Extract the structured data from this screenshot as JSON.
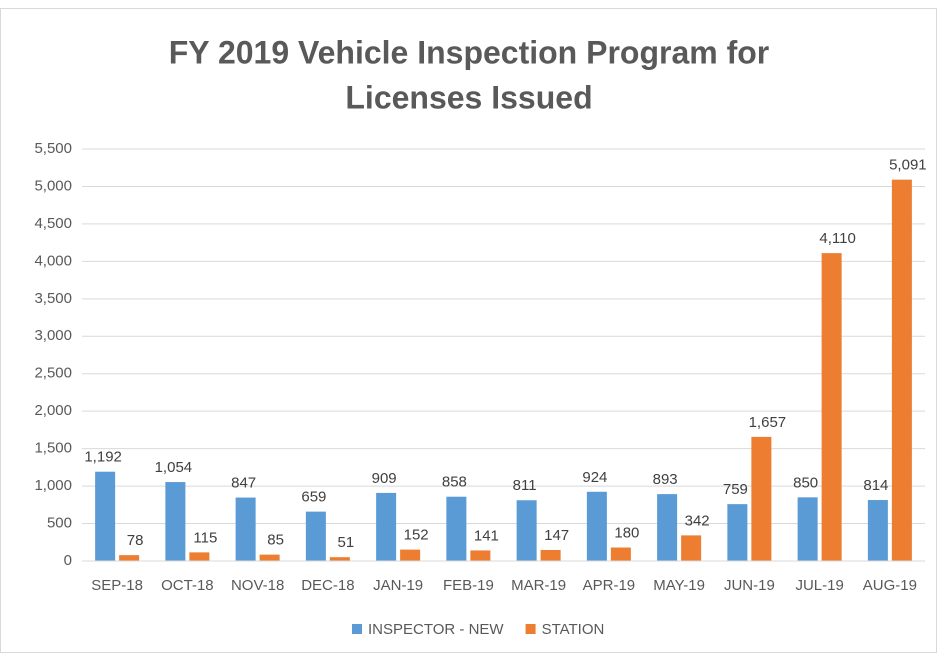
{
  "chart_data": {
    "type": "bar",
    "title": [
      "FY 2019 Vehicle Inspection Program for",
      "Licenses Issued"
    ],
    "categories": [
      "SEP-18",
      "OCT-18",
      "NOV-18",
      "DEC-18",
      "JAN-19",
      "FEB-19",
      "MAR-19",
      "APR-19",
      "MAY-19",
      "JUN-19",
      "JUL-19",
      "AUG-19"
    ],
    "series": [
      {
        "name": "INSPECTOR - NEW",
        "color": "#5b9bd5",
        "values": [
          1192,
          1054,
          847,
          659,
          909,
          858,
          811,
          924,
          893,
          759,
          850,
          814
        ],
        "value_labels": [
          "1,192",
          "1,054",
          "847",
          "659",
          "909",
          "858",
          "811",
          "924",
          "893",
          "759",
          "850",
          "814"
        ]
      },
      {
        "name": "STATION",
        "color": "#ed7d31",
        "values": [
          78,
          115,
          85,
          51,
          152,
          141,
          147,
          180,
          342,
          1657,
          4110,
          5091
        ],
        "value_labels": [
          "78",
          "115",
          "85",
          "51",
          "152",
          "141",
          "147",
          "180",
          "342",
          "1,657",
          "4,110",
          "5,091"
        ]
      }
    ],
    "ylim": [
      0,
      5500
    ],
    "yticks": [
      0,
      500,
      {
        "value": 1000,
        "label": "1,000"
      },
      {
        "value": 1500,
        "label": "1,500"
      },
      {
        "value": 2000,
        "label": "2,000"
      },
      {
        "value": 2500,
        "label": "2,500"
      },
      {
        "value": 3000,
        "label": "3,000"
      },
      {
        "value": 3500,
        "label": "3,500"
      },
      {
        "value": 4000,
        "label": "4,000"
      },
      {
        "value": 4500,
        "label": "4,500"
      },
      {
        "value": 5000,
        "label": "5,000"
      },
      {
        "value": 5500,
        "label": "5,500"
      }
    ],
    "grid": true,
    "legend": "bottom"
  }
}
